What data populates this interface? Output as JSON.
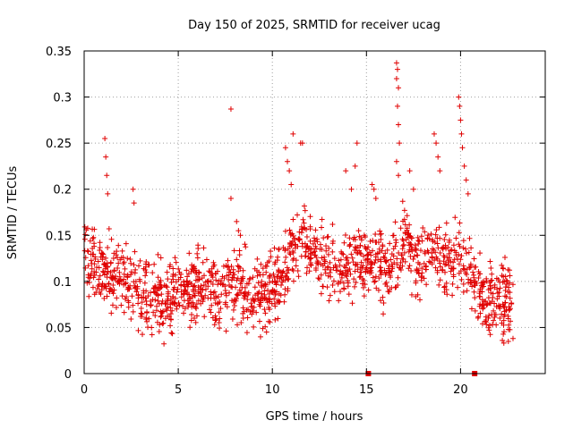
{
  "chart_data": {
    "type": "scatter",
    "title": "Day 150 of 2025, SRMTID for receiver ucag",
    "xlabel": "GPS time / hours",
    "ylabel": "SRMTID / TECUs",
    "xlim": [
      0,
      24.5
    ],
    "ylim": [
      0,
      0.35
    ],
    "x_ticks": [
      0,
      5,
      10,
      15,
      20
    ],
    "x_tick_labels": [
      "0",
      "5",
      "10",
      "15",
      "20"
    ],
    "y_ticks": [
      0,
      0.05,
      0.1,
      0.15,
      0.2,
      0.25,
      0.3,
      0.35
    ],
    "y_tick_labels": [
      "0",
      "0.05",
      "0.1",
      "0.15",
      "0.2",
      "0.25",
      "0.3",
      "0.35"
    ],
    "grid": true,
    "marker": "+",
    "color": "#e00000",
    "series": [
      {
        "name": "SRMTID",
        "trend_x": [
          0,
          0.5,
          1,
          1.5,
          2,
          2.5,
          3,
          3.5,
          4,
          4.5,
          5,
          5.5,
          6,
          6.5,
          7,
          7.5,
          8,
          8.5,
          9,
          9.5,
          10,
          10.5,
          11,
          11.5,
          12,
          12.5,
          13,
          13.5,
          14,
          14.5,
          15,
          15.5,
          16,
          16.5,
          17,
          17.5,
          18,
          18.5,
          19,
          19.5,
          20,
          20.5,
          21,
          21.5,
          22,
          22.5,
          22.8
        ],
        "trend_y": [
          0.13,
          0.12,
          0.11,
          0.105,
          0.11,
          0.1,
          0.09,
          0.085,
          0.08,
          0.08,
          0.085,
          0.09,
          0.095,
          0.09,
          0.09,
          0.09,
          0.1,
          0.095,
          0.09,
          0.09,
          0.09,
          0.11,
          0.13,
          0.14,
          0.14,
          0.13,
          0.12,
          0.11,
          0.12,
          0.125,
          0.12,
          0.12,
          0.11,
          0.12,
          0.14,
          0.13,
          0.12,
          0.13,
          0.12,
          0.12,
          0.13,
          0.11,
          0.09,
          0.08,
          0.075,
          0.08,
          0.08
        ],
        "spread": 0.035,
        "n_points": 1500,
        "spikes": [
          {
            "x": 1.1,
            "y": 0.255
          },
          {
            "x": 1.15,
            "y": 0.235
          },
          {
            "x": 1.2,
            "y": 0.215
          },
          {
            "x": 1.25,
            "y": 0.195
          },
          {
            "x": 2.6,
            "y": 0.2
          },
          {
            "x": 2.65,
            "y": 0.185
          },
          {
            "x": 7.8,
            "y": 0.287
          },
          {
            "x": 7.8,
            "y": 0.19
          },
          {
            "x": 8.1,
            "y": 0.165
          },
          {
            "x": 8.2,
            "y": 0.155
          },
          {
            "x": 8.3,
            "y": 0.15
          },
          {
            "x": 10.7,
            "y": 0.245
          },
          {
            "x": 10.8,
            "y": 0.23
          },
          {
            "x": 10.9,
            "y": 0.22
          },
          {
            "x": 11.1,
            "y": 0.26
          },
          {
            "x": 11.5,
            "y": 0.25
          },
          {
            "x": 11.6,
            "y": 0.25
          },
          {
            "x": 11.0,
            "y": 0.205
          },
          {
            "x": 13.9,
            "y": 0.22
          },
          {
            "x": 14.2,
            "y": 0.2
          },
          {
            "x": 14.5,
            "y": 0.25
          },
          {
            "x": 14.4,
            "y": 0.225
          },
          {
            "x": 15.3,
            "y": 0.205
          },
          {
            "x": 15.4,
            "y": 0.2
          },
          {
            "x": 15.5,
            "y": 0.19
          },
          {
            "x": 16.6,
            "y": 0.337
          },
          {
            "x": 16.65,
            "y": 0.33
          },
          {
            "x": 16.6,
            "y": 0.32
          },
          {
            "x": 16.7,
            "y": 0.31
          },
          {
            "x": 16.65,
            "y": 0.29
          },
          {
            "x": 16.7,
            "y": 0.27
          },
          {
            "x": 16.75,
            "y": 0.25
          },
          {
            "x": 16.6,
            "y": 0.23
          },
          {
            "x": 16.7,
            "y": 0.215
          },
          {
            "x": 17.3,
            "y": 0.22
          },
          {
            "x": 17.5,
            "y": 0.2
          },
          {
            "x": 18.6,
            "y": 0.26
          },
          {
            "x": 18.7,
            "y": 0.25
          },
          {
            "x": 18.8,
            "y": 0.235
          },
          {
            "x": 18.9,
            "y": 0.22
          },
          {
            "x": 19.9,
            "y": 0.3
          },
          {
            "x": 19.95,
            "y": 0.29
          },
          {
            "x": 20.0,
            "y": 0.275
          },
          {
            "x": 20.05,
            "y": 0.26
          },
          {
            "x": 20.1,
            "y": 0.245
          },
          {
            "x": 20.2,
            "y": 0.225
          },
          {
            "x": 20.3,
            "y": 0.21
          },
          {
            "x": 20.4,
            "y": 0.195
          }
        ],
        "zero_markers": [
          {
            "x": 15.1,
            "y": 0
          },
          {
            "x": 20.75,
            "y": 0
          }
        ]
      }
    ]
  }
}
